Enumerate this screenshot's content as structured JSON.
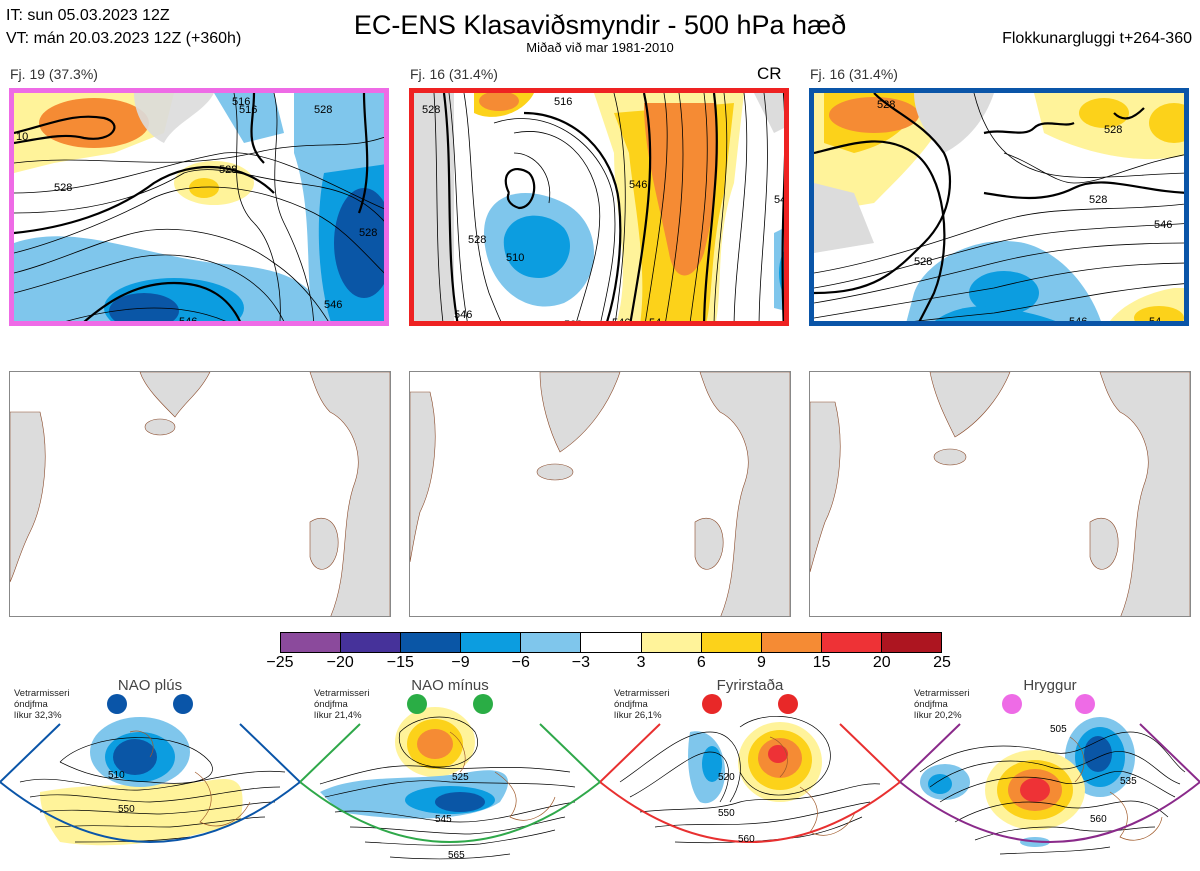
{
  "header": {
    "initial_time": "IT: sun 05.03.2023 12Z",
    "valid_time": "VT: mán 20.03.2023 12Z  (+360h)",
    "title": "EC-ENS Klasaviðsmyndir - 500 hPa hæð",
    "subtitle": "Miðað við mar 1981-2010",
    "window": "Flokkunargluggi t+264-360"
  },
  "clusters": [
    {
      "label": "Fj. 19 (37.3%)",
      "frame_color": "#ee6be6"
    },
    {
      "label": "Fj. 16 (31.4%)",
      "frame_color": "#ee2222",
      "tag": "CR"
    },
    {
      "label": "Fj. 16 (31.4%)",
      "frame_color": "#0a55a8"
    }
  ],
  "contour_labels": {
    "map1": [
      "10",
      "528",
      "528",
      "516",
      "528",
      "546",
      "546",
      "54",
      "528",
      "516"
    ],
    "map2": [
      "528",
      "516",
      "510",
      "528",
      "546",
      "528",
      "546",
      "54",
      "546",
      "54"
    ],
    "map3": [
      "528",
      "528",
      "528",
      "528",
      "546",
      "546",
      "54"
    ]
  },
  "colorbar": {
    "colors": [
      "#8b4a9c",
      "#46329a",
      "#0a56a6",
      "#0c9de0",
      "#7fc6ec",
      "#ffffff",
      "#fff39a",
      "#fcd21a",
      "#f58b34",
      "#ee3236",
      "#ad1520"
    ],
    "ticks": [
      "−25",
      "−20",
      "−15",
      "−9",
      "−6",
      "−3",
      "3",
      "6",
      "9",
      "15",
      "20",
      "25"
    ]
  },
  "regimes": [
    {
      "name": "NAO plús",
      "note": [
        "Vetrarmisseri",
        "óndjfma",
        "líkur 32,3%"
      ],
      "color": "#0a55a8",
      "dot_color": "#0a55a8",
      "labels": [
        "510",
        "550"
      ]
    },
    {
      "name": "NAO mínus",
      "note": [
        "Vetrarmisseri",
        "óndjfma",
        "líkur 21,4%"
      ],
      "color": "#2fa84a",
      "dot_color": "#2aad45",
      "labels": [
        "525",
        "545",
        "565"
      ]
    },
    {
      "name": "Fyrirstaða",
      "note": [
        "Vetrarmisseri",
        "óndjfma",
        "líkur 26,1%"
      ],
      "color": "#e83030",
      "dot_color": "#e82828",
      "labels": [
        "520",
        "550",
        "560"
      ]
    },
    {
      "name": "Hryggur",
      "note": [
        "Vetrarmisseri",
        "óndjfma",
        "líkur 20,2%"
      ],
      "color": "#8a2a8a",
      "dot_color": "#ee6be6",
      "labels": [
        "505",
        "535",
        "560"
      ]
    }
  ]
}
